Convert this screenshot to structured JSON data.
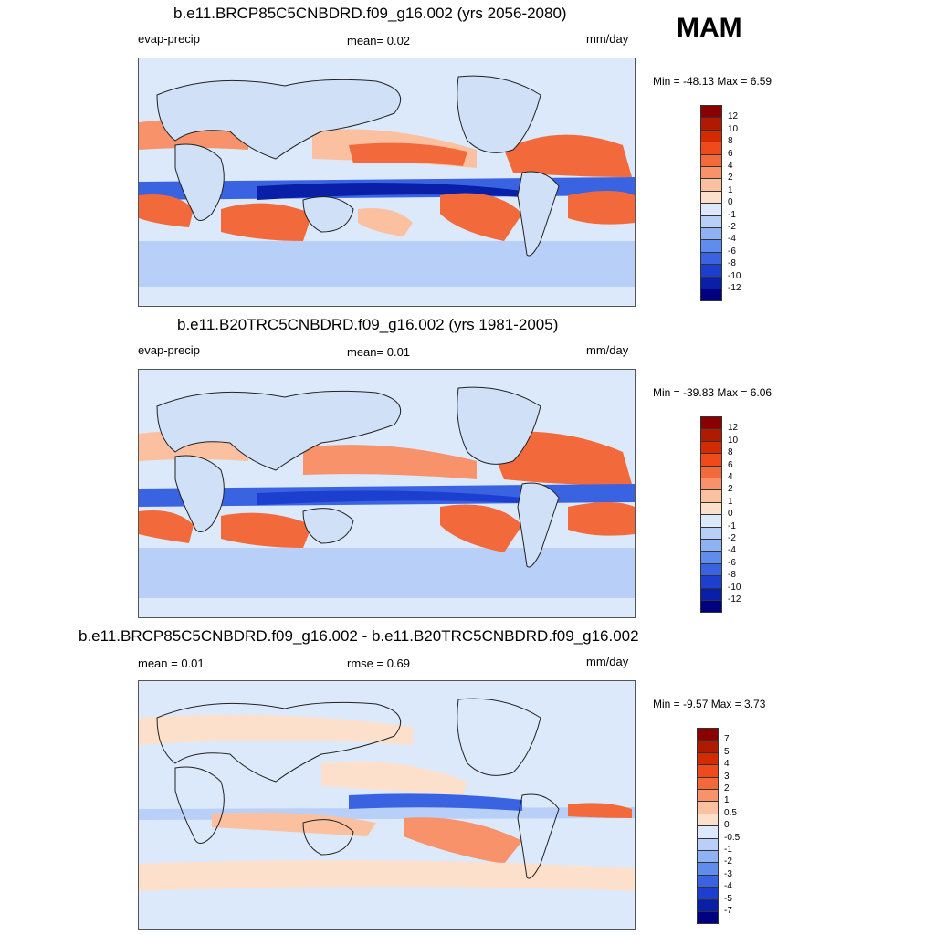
{
  "season": "MAM",
  "panels": [
    {
      "title": "b.e11.BRCP85C5CNBDRD.f09_g16.002 (yrs 2056-2080)",
      "left_label": "evap-precip",
      "center_label": "mean=   0.02",
      "units": "mm/day",
      "minmax": "Min = -48.13 Max =    6.59",
      "colorbar": {
        "labels": [
          "12",
          "10",
          "8",
          "6",
          "4",
          "2",
          "1",
          "0",
          "-1",
          "-2",
          "-4",
          "-6",
          "-8",
          "-10",
          "-12"
        ],
        "colors": [
          "#8b0000",
          "#b01a00",
          "#d32a00",
          "#ef4a1c",
          "#f26a3c",
          "#f7926a",
          "#fbc09f",
          "#fde0cc",
          "#dbe9fb",
          "#b8cff7",
          "#8fb2f2",
          "#5f8ced",
          "#3a63e2",
          "#1d3fd0",
          "#0a1fa8",
          "#000080"
        ]
      }
    },
    {
      "title": "b.e11.B20TRC5CNBDRD.f09_g16.002 (yrs 1981-2005)",
      "left_label": "evap-precip",
      "center_label": "mean=   0.01",
      "units": "mm/day",
      "minmax": "Min = -39.83 Max =    6.06",
      "colorbar": {
        "labels": [
          "12",
          "10",
          "8",
          "6",
          "4",
          "2",
          "1",
          "0",
          "-1",
          "-2",
          "-4",
          "-6",
          "-8",
          "-10",
          "-12"
        ],
        "colors": [
          "#8b0000",
          "#b01a00",
          "#d32a00",
          "#ef4a1c",
          "#f26a3c",
          "#f7926a",
          "#fbc09f",
          "#fde0cc",
          "#dbe9fb",
          "#b8cff7",
          "#8fb2f2",
          "#5f8ced",
          "#3a63e2",
          "#1d3fd0",
          "#0a1fa8",
          "#000080"
        ]
      }
    },
    {
      "title": "b.e11.BRCP85C5CNBDRD.f09_g16.002 - b.e11.B20TRC5CNBDRD.f09_g16.002",
      "left_label": "mean =    0.01",
      "center_label": "rmse =    0.69",
      "units": "mm/day",
      "minmax": "Min =  -9.57 Max =    3.73",
      "colorbar": {
        "labels": [
          "7",
          "5",
          "4",
          "3",
          "2",
          "1",
          "0.5",
          "0",
          "-0.5",
          "-1",
          "-2",
          "-3",
          "-4",
          "-5",
          "-7"
        ],
        "colors": [
          "#8b0000",
          "#b01a00",
          "#d32a00",
          "#ef4a1c",
          "#f26a3c",
          "#f7926a",
          "#fbc09f",
          "#fde0cc",
          "#dbe9fb",
          "#b8cff7",
          "#8fb2f2",
          "#5f8ced",
          "#3a63e2",
          "#1d3fd0",
          "#0a1fa8",
          "#000080"
        ]
      }
    }
  ]
}
